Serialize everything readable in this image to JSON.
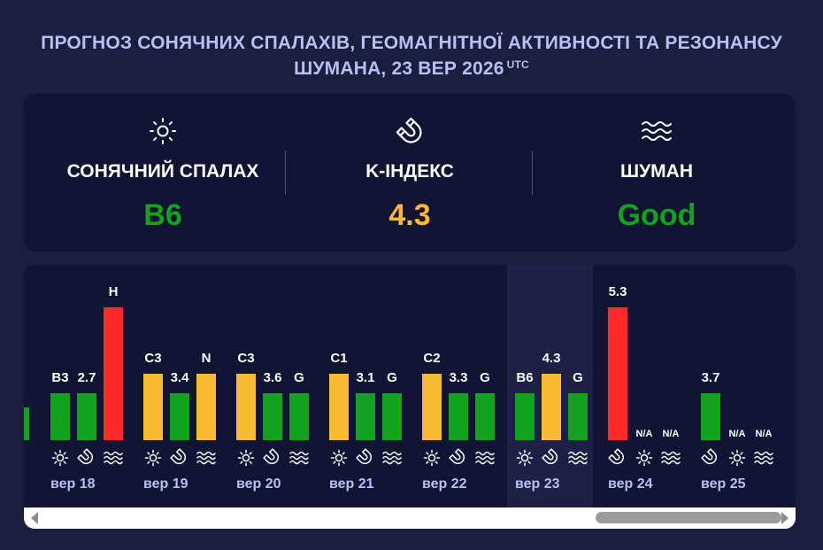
{
  "title": {
    "text": "ПРОГНОЗ СОНЯЧНИХ СПАЛАХІВ, ГЕОМАГНІТНОЇ АКТИВНОСТІ ТА РЕЗОНАНСУ ШУМАНА, 23 ВЕР 2026",
    "suffix": "UTC"
  },
  "summary": {
    "solar": {
      "label": "СОНЯЧНИЙ СПАЛАХ",
      "value": "B6",
      "color": "#11a31d",
      "icon": "sun-icon"
    },
    "kindex": {
      "label": "K-ІНДЕКС",
      "value": "4.3",
      "color": "#fbb934",
      "icon": "magnet-icon"
    },
    "schumann": {
      "label": "ШУМАН",
      "value": "Good",
      "color": "#11a31d",
      "icon": "waves-icon"
    }
  },
  "colors": {
    "green": "#11a31d",
    "yellow": "#fbb934",
    "red": "#ff2b2b",
    "accent": "#b9bff4"
  },
  "chart_data": {
    "type": "bar",
    "current_day": "вер 23",
    "days": [
      {
        "label": "вер 18",
        "bars": [
          {
            "kind": "sun",
            "text": "B3",
            "level": 0.35,
            "color": "green"
          },
          {
            "kind": "magnet",
            "text": "2.7",
            "level": 0.35,
            "color": "green"
          },
          {
            "kind": "waves",
            "text": "H",
            "level": 1.0,
            "color": "red"
          }
        ]
      },
      {
        "label": "вер 19",
        "bars": [
          {
            "kind": "sun",
            "text": "C3",
            "level": 0.5,
            "color": "yellow"
          },
          {
            "kind": "magnet",
            "text": "3.4",
            "level": 0.35,
            "color": "green"
          },
          {
            "kind": "waves",
            "text": "N",
            "level": 0.5,
            "color": "yellow"
          }
        ]
      },
      {
        "label": "вер 20",
        "bars": [
          {
            "kind": "sun",
            "text": "C3",
            "level": 0.5,
            "color": "yellow"
          },
          {
            "kind": "magnet",
            "text": "3.6",
            "level": 0.35,
            "color": "green"
          },
          {
            "kind": "waves",
            "text": "G",
            "level": 0.35,
            "color": "green"
          }
        ]
      },
      {
        "label": "вер 21",
        "bars": [
          {
            "kind": "sun",
            "text": "C1",
            "level": 0.5,
            "color": "yellow"
          },
          {
            "kind": "magnet",
            "text": "3.1",
            "level": 0.35,
            "color": "green"
          },
          {
            "kind": "waves",
            "text": "G",
            "level": 0.35,
            "color": "green"
          }
        ]
      },
      {
        "label": "вер 22",
        "bars": [
          {
            "kind": "sun",
            "text": "C2",
            "level": 0.5,
            "color": "yellow"
          },
          {
            "kind": "magnet",
            "text": "3.3",
            "level": 0.35,
            "color": "green"
          },
          {
            "kind": "waves",
            "text": "G",
            "level": 0.35,
            "color": "green"
          }
        ]
      },
      {
        "label": "вер 23",
        "bars": [
          {
            "kind": "sun",
            "text": "B6",
            "level": 0.35,
            "color": "green"
          },
          {
            "kind": "magnet",
            "text": "4.3",
            "level": 0.5,
            "color": "yellow"
          },
          {
            "kind": "waves",
            "text": "G",
            "level": 0.35,
            "color": "green"
          }
        ]
      },
      {
        "label": "вер 24",
        "bars": [
          {
            "kind": "magnet",
            "text": "5.3",
            "level": 1.0,
            "color": "red"
          },
          {
            "kind": "sun",
            "text": "N/A",
            "level": 0,
            "color": "none"
          },
          {
            "kind": "waves",
            "text": "N/A",
            "level": 0,
            "color": "none"
          }
        ]
      },
      {
        "label": "вер 25",
        "bars": [
          {
            "kind": "magnet",
            "text": "3.7",
            "level": 0.35,
            "color": "green"
          },
          {
            "kind": "sun",
            "text": "N/A",
            "level": 0,
            "color": "none"
          },
          {
            "kind": "waves",
            "text": "N/A",
            "level": 0,
            "color": "none"
          }
        ]
      }
    ]
  }
}
